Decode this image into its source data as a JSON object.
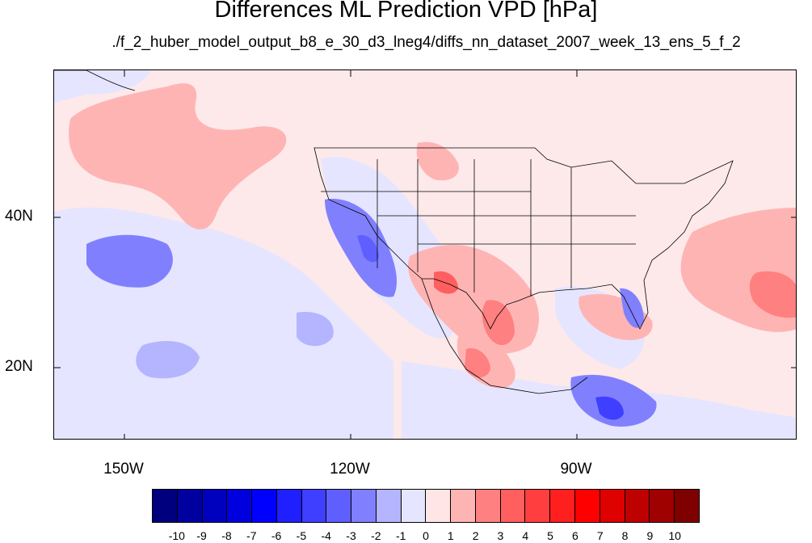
{
  "title": "Differences ML Prediction VPD [hPa]",
  "subtitle": "./f_2_huber_model_output_b8_e_30_d3_lneg4/diffs_nn_dataset_2007_week_13_ens_5_f_2",
  "lat_labels": [
    "40N",
    "20N"
  ],
  "lon_labels": [
    "150W",
    "120W",
    "90W"
  ],
  "colorbar": {
    "colors": [
      "#00007f",
      "#00009f",
      "#0000bf",
      "#0000df",
      "#0000ff",
      "#1f1fff",
      "#3f3fff",
      "#5f5fff",
      "#8080ff",
      "#b4b4ff",
      "#e5e5ff",
      "#ffe5e5",
      "#ffb4b4",
      "#ff8080",
      "#ff5f5f",
      "#ff3f3f",
      "#ff1f1f",
      "#ff0000",
      "#df0000",
      "#bf0000",
      "#9f0000",
      "#7f0000"
    ],
    "labels": [
      "-10",
      "-9",
      "-8",
      "-7",
      "-6",
      "-5",
      "-4",
      "-3",
      "-2",
      "-1",
      "0",
      "1",
      "2",
      "3",
      "4",
      "5",
      "6",
      "7",
      "8",
      "9",
      "10"
    ]
  }
}
